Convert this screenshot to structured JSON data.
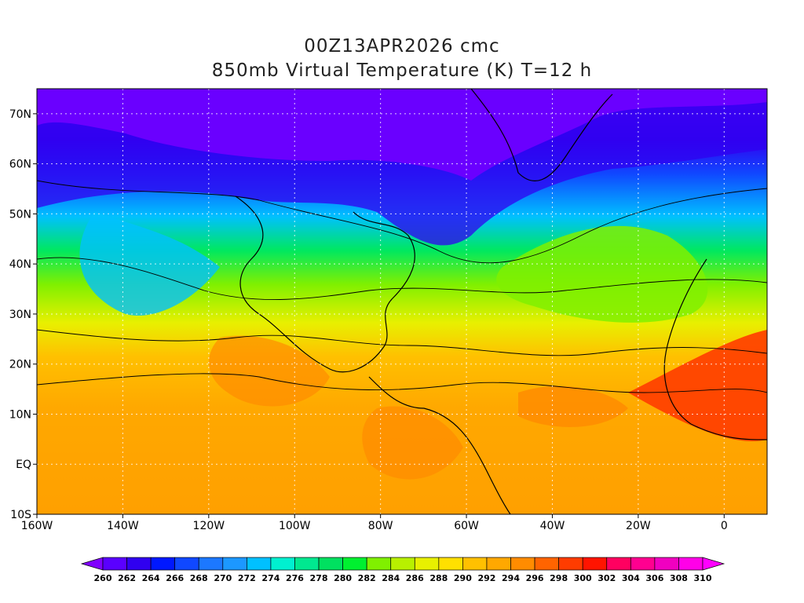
{
  "title": {
    "line1": "00Z13APR2026 cmc",
    "line2": "850mb Virtual Temperature (K) T=12 h"
  },
  "map": {
    "lon_range": [
      -160,
      10
    ],
    "lat_range": [
      -10,
      75
    ],
    "lon_ticks": [
      {
        "value": -160,
        "label": "160W"
      },
      {
        "value": -140,
        "label": "140W"
      },
      {
        "value": -120,
        "label": "120W"
      },
      {
        "value": -100,
        "label": "100W"
      },
      {
        "value": -80,
        "label": "80W"
      },
      {
        "value": -60,
        "label": "60W"
      },
      {
        "value": -40,
        "label": "40W"
      },
      {
        "value": -20,
        "label": "20W"
      },
      {
        "value": 0,
        "label": "0"
      }
    ],
    "lat_ticks": [
      {
        "value": 70,
        "label": "70N"
      },
      {
        "value": 60,
        "label": "60N"
      },
      {
        "value": 50,
        "label": "50N"
      },
      {
        "value": 40,
        "label": "40N"
      },
      {
        "value": 30,
        "label": "30N"
      },
      {
        "value": 20,
        "label": "20N"
      },
      {
        "value": 10,
        "label": "10N"
      },
      {
        "value": 0,
        "label": "EQ"
      },
      {
        "value": -10,
        "label": "10S"
      }
    ],
    "grid": true
  },
  "colorbar": {
    "unit": "K",
    "levels": [
      260,
      262,
      264,
      266,
      268,
      270,
      272,
      274,
      276,
      278,
      280,
      282,
      284,
      286,
      288,
      290,
      292,
      294,
      296,
      298,
      300,
      302,
      304,
      306,
      308,
      310
    ],
    "colors": [
      "#8000ff",
      "#5a00ff",
      "#3000f0",
      "#0018ff",
      "#1048ff",
      "#1c78ff",
      "#1c98ff",
      "#00c0ff",
      "#00f0d0",
      "#00e890",
      "#00e060",
      "#00f030",
      "#80f000",
      "#b8f000",
      "#e8f000",
      "#ffe000",
      "#ffc000",
      "#ffa800",
      "#ff8c00",
      "#ff6400",
      "#ff3c00",
      "#ff1400",
      "#ff0060",
      "#ff0090",
      "#f000c0",
      "#ff00e8",
      "#ff00ff"
    ]
  }
}
